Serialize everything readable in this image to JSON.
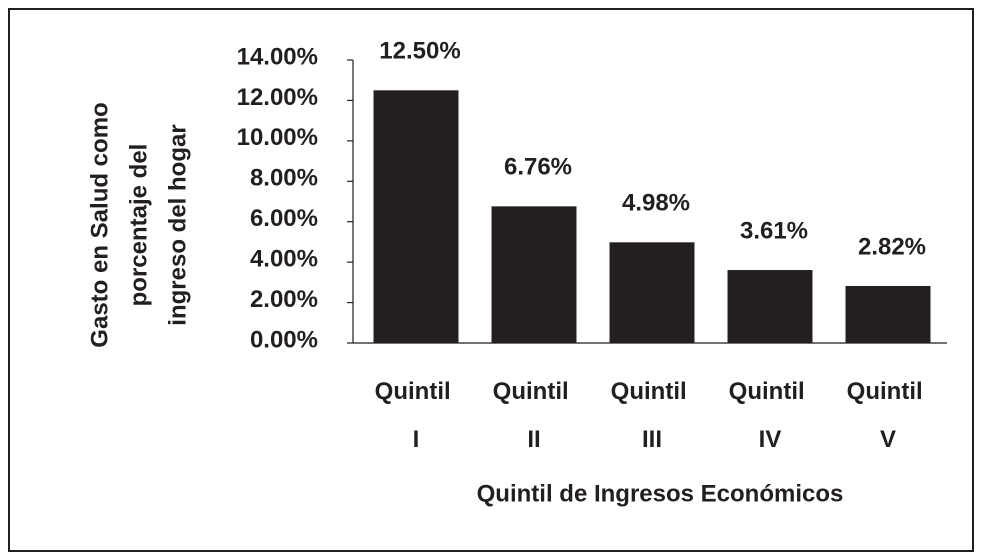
{
  "chart_data": {
    "type": "bar",
    "xlabel": "Quintil de Ingresos Económicos",
    "ylabel": [
      "Gasto en Salud como",
      "porcentaje del",
      "ingreso del hogar"
    ],
    "categories": [
      "Quintil I",
      "Quintil II",
      "Quintil III",
      "Quintil IV",
      "Quintil V"
    ],
    "values": [
      12.5,
      6.76,
      4.98,
      3.61,
      2.82
    ],
    "value_labels": [
      "12.50%",
      "6.76%",
      "4.98%",
      "3.61%",
      "2.82%"
    ],
    "color": "#231f20",
    "ylim": [
      0,
      14
    ],
    "yticks": [
      {
        "value": 0,
        "label": "0.00%"
      },
      {
        "value": 2,
        "label": "2.00%"
      },
      {
        "value": 4,
        "label": "4.00%"
      },
      {
        "value": 6,
        "label": "6.00%"
      },
      {
        "value": 8,
        "label": "8.00%"
      },
      {
        "value": 10,
        "label": "10.00%"
      },
      {
        "value": 12,
        "label": "12.00%"
      },
      {
        "value": 14,
        "label": "14.00%"
      }
    ],
    "grid": false
  }
}
